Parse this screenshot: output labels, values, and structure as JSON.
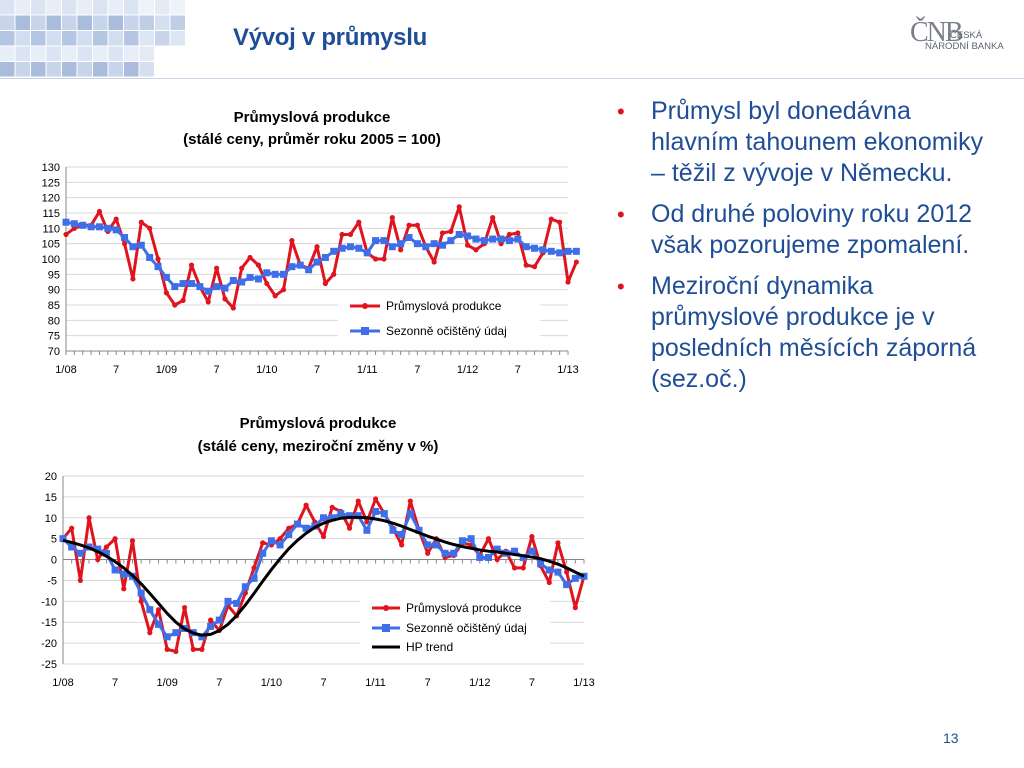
{
  "slide": {
    "title": "Vývoj v průmyslu",
    "page_number": "13",
    "logo": {
      "mark": "ČNB",
      "line1": "ČESKÁ",
      "line2": "NÁRODNÍ BANKA"
    },
    "bullets": [
      "Průmysl byl donedávna hlavním tahounem ekonomiky – těžil z vývoje v Německu.",
      "Od druhé poloviny roku 2012 však pozorujeme zpomalení.",
      "Meziroční dynamika průmyslové produkce je v posledních měsících záporná (sez.oč.)"
    ]
  },
  "colors": {
    "title": "#1f4e96",
    "bullet_dot": "#e0141e",
    "series_red": "#e0141e",
    "series_blue": "#3f6fe8",
    "trend": "#000000"
  },
  "chart_data": [
    {
      "type": "line",
      "title": "Průmyslová produkce",
      "subtitle": "(stálé ceny, průměr roku 2005 = 100)",
      "xlabel": "",
      "ylabel": "",
      "x_tick_labels": [
        "1/08",
        "7",
        "1/09",
        "7",
        "1/10",
        "7",
        "1/11",
        "7",
        "1/12",
        "7",
        "1/13"
      ],
      "ylim": [
        70,
        130
      ],
      "y_ticks": [
        70,
        75,
        80,
        85,
        90,
        95,
        100,
        105,
        110,
        115,
        120,
        125,
        130
      ],
      "grid": "horizontal",
      "legend_position": "lower-right",
      "series": [
        {
          "name": "Průmyslová produkce",
          "values": [
            108,
            110,
            111,
            111,
            115.5,
            109,
            113,
            105,
            93.5,
            112,
            110,
            100,
            89,
            85,
            86.5,
            98,
            91,
            86,
            97,
            87,
            84,
            97,
            100.5,
            98,
            92,
            88,
            90,
            106,
            98,
            97,
            104,
            92,
            95,
            108,
            108,
            112,
            102,
            100,
            100,
            113.5,
            103,
            111,
            111,
            104,
            99,
            108.5,
            109,
            117,
            104.5,
            103,
            105,
            113.5,
            105,
            108,
            108.5,
            98,
            97.5,
            102,
            113,
            112,
            92.5,
            99
          ]
        },
        {
          "name": "Sezonně očištěný údaj",
          "values": [
            112,
            111.5,
            111,
            110.5,
            110.5,
            110,
            109.5,
            107,
            104,
            104.5,
            100.5,
            97.5,
            94,
            91,
            92,
            92,
            91,
            89.5,
            91,
            90.5,
            93,
            92.5,
            94,
            93.5,
            95.5,
            95,
            95,
            97.5,
            98,
            96.5,
            99,
            100.5,
            102.5,
            103.5,
            104,
            103.5,
            102,
            106,
            106,
            104,
            105,
            107,
            105,
            104,
            105,
            104.5,
            106,
            108,
            107.5,
            106.5,
            106,
            106.5,
            106.5,
            106,
            106.5,
            104,
            103.5,
            103,
            102.5,
            102,
            102.5,
            102.5
          ]
        }
      ]
    },
    {
      "type": "line",
      "title": "Průmyslová produkce",
      "subtitle": "(stálé ceny, meziroční změny v %)",
      "xlabel": "",
      "ylabel": "",
      "x_tick_labels": [
        "1/08",
        "7",
        "1/09",
        "7",
        "1/10",
        "7",
        "1/11",
        "7",
        "1/12",
        "7",
        "1/13"
      ],
      "ylim": [
        -25,
        20
      ],
      "y_ticks": [
        -25,
        -20,
        -15,
        -10,
        -5,
        0,
        5,
        10,
        15,
        20
      ],
      "grid": "horizontal",
      "legend_position": "lower-right",
      "series": [
        {
          "name": "Průmyslová produkce",
          "values": [
            5,
            7.5,
            -5,
            10,
            0,
            3,
            5,
            -7,
            4.5,
            -10,
            -17.5,
            -12,
            -21.5,
            -22,
            -11.5,
            -21.5,
            -21.5,
            -14.5,
            -17,
            -11,
            -13.5,
            -8,
            -2,
            4,
            3.5,
            5,
            7.5,
            8.5,
            13,
            9,
            5.5,
            12.5,
            11.5,
            7.5,
            14,
            9,
            14.5,
            11,
            7.5,
            3.5,
            14,
            7,
            1.5,
            5,
            0.5,
            1,
            4,
            3.5,
            1,
            5,
            0,
            2,
            -2,
            -2,
            5.5,
            -1.5,
            -5.5,
            4,
            -3,
            -11.5,
            -4
          ]
        },
        {
          "name": "Sezonně očištěný údaj",
          "values": [
            5,
            3,
            1.5,
            3,
            2.5,
            1.5,
            -2.5,
            -3.5,
            -4,
            -8,
            -12,
            -15.5,
            -18.5,
            -17.5,
            -16.5,
            -17.5,
            -18.5,
            -16,
            -14.5,
            -10,
            -10.5,
            -6.5,
            -4.5,
            1.5,
            4.5,
            3.5,
            6,
            8.5,
            7.5,
            8,
            10,
            10,
            11,
            10.5,
            10.5,
            7,
            11.5,
            11,
            7,
            6,
            11,
            7,
            3.5,
            3.5,
            1.5,
            1.5,
            4.5,
            5,
            0.5,
            0.5,
            2.5,
            1.5,
            2,
            0.5,
            2,
            -1,
            -2.5,
            -3,
            -6,
            -4.5,
            -4
          ]
        },
        {
          "name": "HP trend",
          "values": [
            4.6,
            4.1,
            3.5,
            2.8,
            1.9,
            0.8,
            -0.5,
            -2,
            -3.8,
            -5.8,
            -8.1,
            -10.5,
            -12.9,
            -15,
            -16.6,
            -17.6,
            -18.1,
            -17.9,
            -17,
            -15.5,
            -13.4,
            -10.9,
            -8.1,
            -5.2,
            -2.4,
            0.2,
            2.6,
            4.6,
            6.3,
            7.7,
            8.7,
            9.4,
            9.9,
            10.1,
            10.1,
            10,
            9.7,
            9.3,
            8.7,
            8,
            7.2,
            6.4,
            5.6,
            4.9,
            4.2,
            3.6,
            3.1,
            2.7,
            2.3,
            2,
            1.8,
            1.5,
            1.2,
            0.9,
            0.6,
            0.2,
            -0.4,
            -1.1,
            -2,
            -3,
            -4
          ]
        }
      ]
    }
  ]
}
